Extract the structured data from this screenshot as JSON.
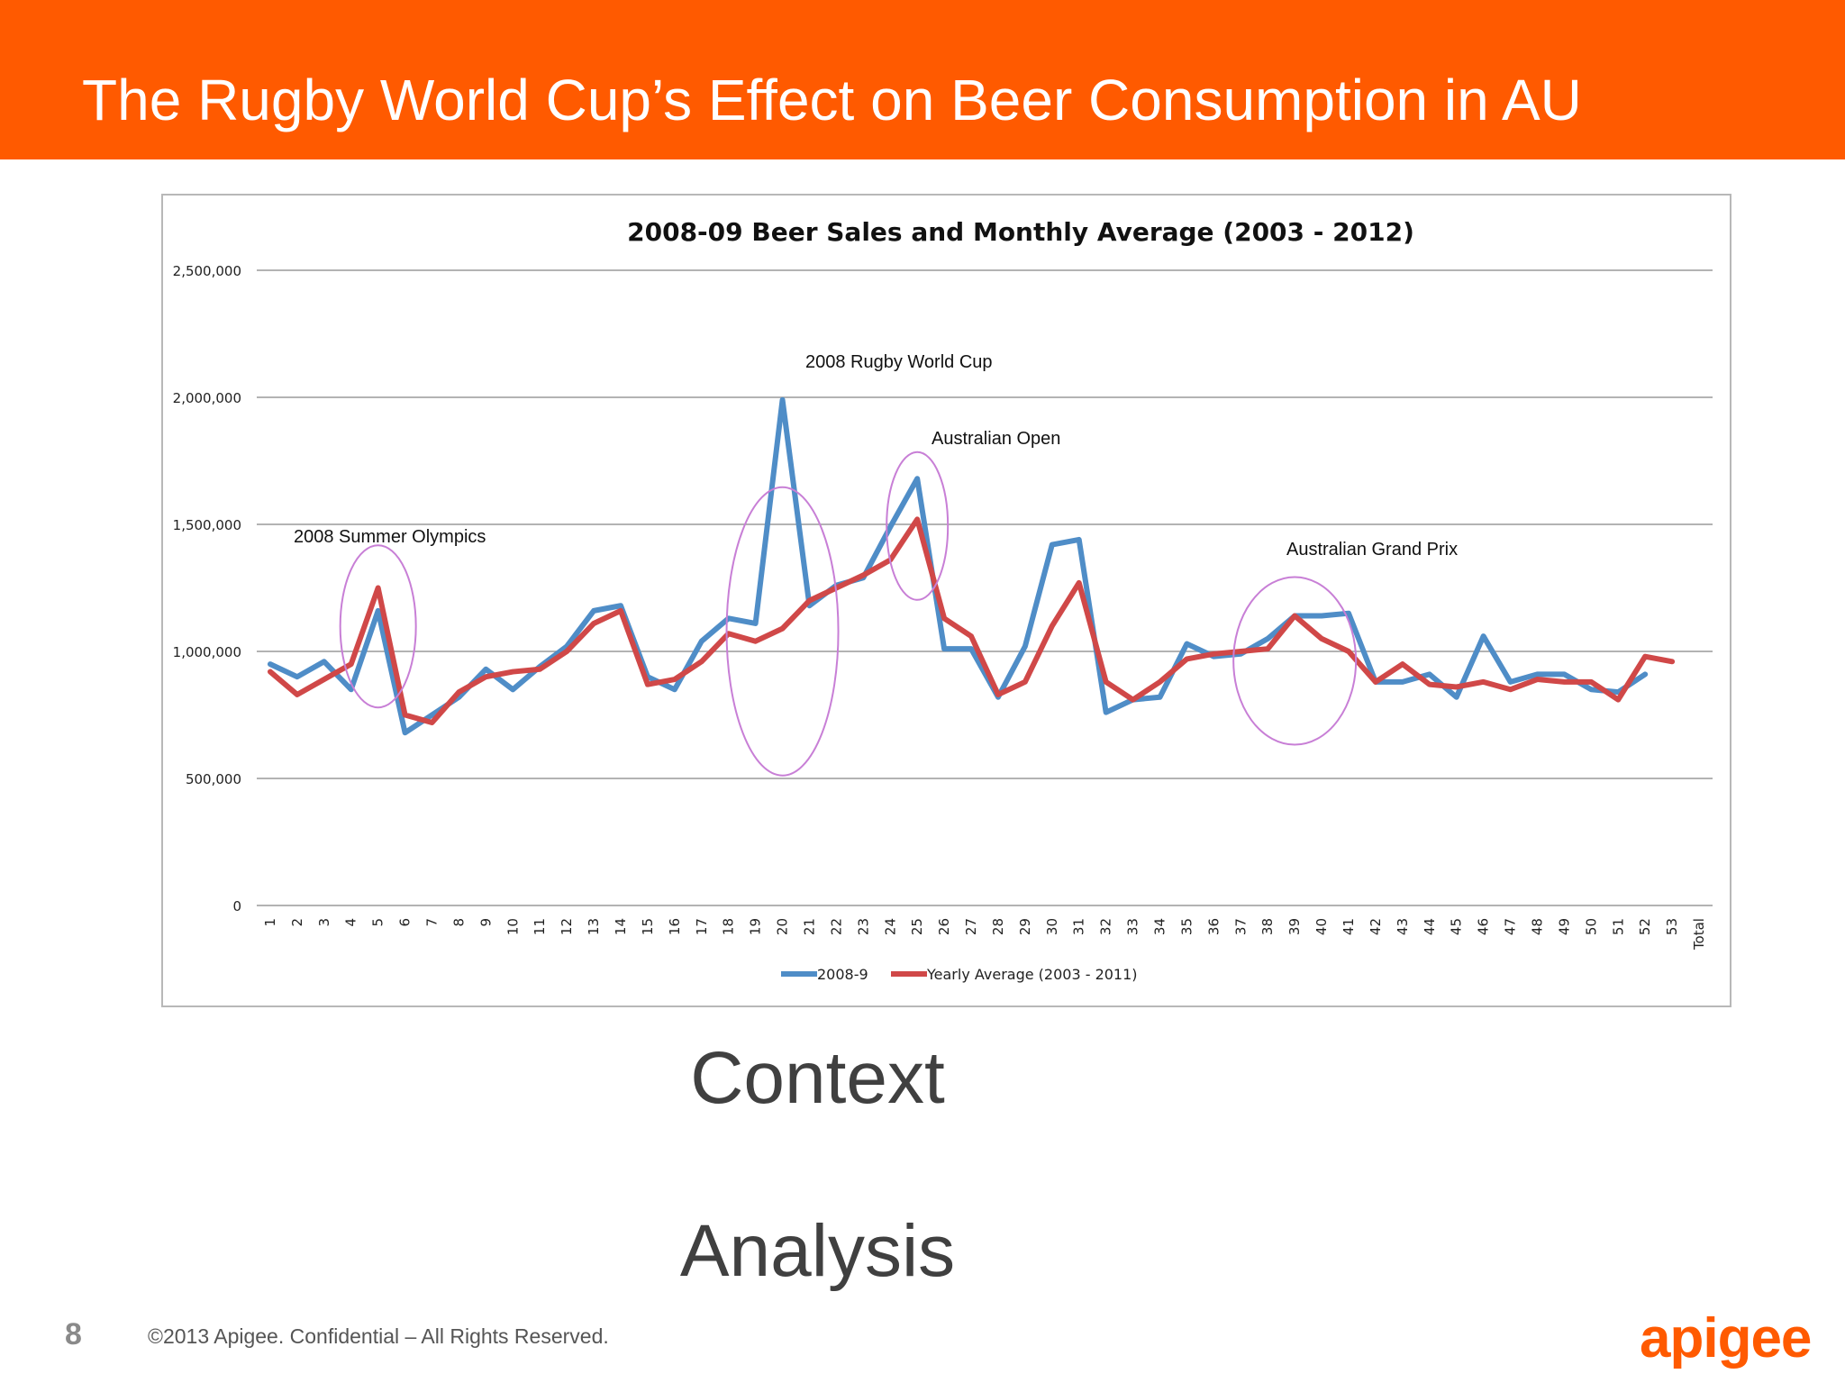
{
  "slide": {
    "title": "The Rugby World Cup’s Effect on Beer Consumption in AU",
    "subhead_1": "Context",
    "subhead_2": "Analysis",
    "page_number": "8",
    "copyright": "©2013 Apigee. Confidential – All Rights Reserved.",
    "logo_text": "apigee",
    "accent_color": "#ff5a00"
  },
  "chart_data": {
    "type": "line",
    "title": "2008-09 Beer Sales and Monthly Average (2003 - 2012)",
    "xlabel": "",
    "ylabel": "",
    "ylim": [
      0,
      2500000
    ],
    "y_ticks": [
      "0",
      "500,000",
      "1,000,000",
      "1,500,000",
      "2,000,000",
      "2,500,000"
    ],
    "y_tick_values": [
      0,
      500000,
      1000000,
      1500000,
      2000000,
      2500000
    ],
    "categories": [
      "1",
      "2",
      "3",
      "4",
      "5",
      "6",
      "7",
      "8",
      "9",
      "10",
      "11",
      "12",
      "13",
      "14",
      "15",
      "16",
      "17",
      "18",
      "19",
      "20",
      "21",
      "22",
      "23",
      "24",
      "25",
      "26",
      "27",
      "28",
      "29",
      "30",
      "31",
      "32",
      "33",
      "34",
      "35",
      "36",
      "37",
      "38",
      "39",
      "40",
      "41",
      "42",
      "43",
      "44",
      "45",
      "46",
      "47",
      "48",
      "49",
      "50",
      "51",
      "52",
      "53",
      "Total"
    ],
    "grid": true,
    "legend_position": "bottom",
    "series": [
      {
        "name": "2008-9",
        "color": "#4f8dc7",
        "values": [
          950000,
          900000,
          960000,
          850000,
          1160000,
          680000,
          750000,
          820000,
          930000,
          850000,
          940000,
          1020000,
          1160000,
          1180000,
          900000,
          850000,
          1040000,
          1130000,
          1110000,
          1990000,
          1180000,
          1260000,
          1290000,
          1490000,
          1680000,
          1010000,
          1010000,
          820000,
          1020000,
          1420000,
          1440000,
          760000,
          810000,
          820000,
          1030000,
          980000,
          990000,
          1050000,
          1140000,
          1140000,
          1150000,
          880000,
          880000,
          910000,
          820000,
          1060000,
          880000,
          910000,
          910000,
          850000,
          840000,
          910000,
          null,
          null
        ]
      },
      {
        "name": "Yearly Average (2003 - 2011)",
        "color": "#d04848",
        "values": [
          920000,
          830000,
          890000,
          950000,
          1250000,
          750000,
          720000,
          840000,
          900000,
          920000,
          930000,
          1000000,
          1110000,
          1160000,
          870000,
          890000,
          960000,
          1070000,
          1040000,
          1090000,
          1200000,
          1250000,
          1300000,
          1360000,
          1520000,
          1130000,
          1060000,
          830000,
          880000,
          1100000,
          1270000,
          880000,
          810000,
          880000,
          970000,
          990000,
          1000000,
          1010000,
          1140000,
          1050000,
          1000000,
          880000,
          950000,
          870000,
          860000,
          880000,
          850000,
          890000,
          880000,
          880000,
          810000,
          980000,
          960000,
          null
        ]
      }
    ],
    "annotations": [
      {
        "text": "2008 Summer Olympics",
        "category": "5"
      },
      {
        "text": "2008 Rugby World Cup",
        "category": "20"
      },
      {
        "text": "Australian Open",
        "category": "25"
      },
      {
        "text": "Australian Grand Prix",
        "category": "39"
      }
    ]
  }
}
